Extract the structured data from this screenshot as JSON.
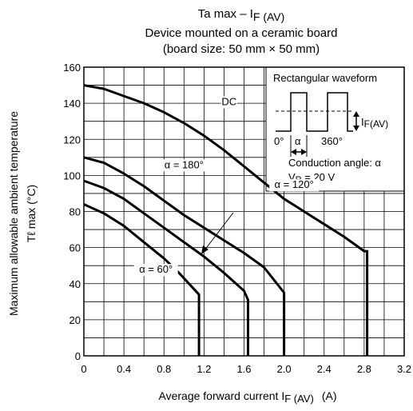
{
  "chart_data": {
    "type": "line",
    "title": {
      "line1_main": "Ta max – I",
      "line1_sub": "F (AV)",
      "line2": "Device mounted on a ceramic board",
      "line3": "(board size: 50 mm × 50 mm)"
    },
    "xlabel": {
      "main": "Average forward current   I",
      "sub": "F (AV)",
      "unit": "(A)"
    },
    "ylabel": {
      "line1": "Maximum allowable ambient temperature",
      "line2": "Tℓ max    (°C)"
    },
    "xlim": [
      0,
      3.2
    ],
    "ylim": [
      0,
      160
    ],
    "x_ticks": [
      "0",
      "0.4",
      "0.8",
      "1.2",
      "1.6",
      "2.0",
      "2.4",
      "2.8",
      "3.2"
    ],
    "y_ticks": [
      "0",
      "20",
      "40",
      "60",
      "80",
      "100",
      "120",
      "140",
      "160"
    ],
    "grid": true,
    "series": [
      {
        "name": "DC",
        "points": [
          [
            0,
            150
          ],
          [
            0.2,
            148
          ],
          [
            0.4,
            144
          ],
          [
            0.6,
            140
          ],
          [
            0.8,
            135
          ],
          [
            1.0,
            129
          ],
          [
            1.2,
            122
          ],
          [
            1.4,
            114
          ],
          [
            1.6,
            105
          ],
          [
            1.8,
            96
          ],
          [
            2.0,
            87
          ],
          [
            2.2,
            80
          ],
          [
            2.4,
            73
          ],
          [
            2.6,
            66
          ],
          [
            2.8,
            58
          ],
          [
            2.83,
            58
          ],
          [
            2.83,
            0
          ]
        ]
      },
      {
        "name": "α = 180°",
        "points": [
          [
            0,
            110
          ],
          [
            0.2,
            107
          ],
          [
            0.4,
            101
          ],
          [
            0.6,
            94
          ],
          [
            0.8,
            86
          ],
          [
            1.0,
            78
          ],
          [
            1.2,
            71
          ],
          [
            1.4,
            64
          ],
          [
            1.6,
            57
          ],
          [
            1.8,
            49
          ],
          [
            2.0,
            35
          ],
          [
            2.0,
            0
          ]
        ]
      },
      {
        "name": "α = 120°",
        "points": [
          [
            0,
            97
          ],
          [
            0.2,
            93
          ],
          [
            0.4,
            87
          ],
          [
            0.6,
            79
          ],
          [
            0.8,
            71
          ],
          [
            1.0,
            63
          ],
          [
            1.2,
            55
          ],
          [
            1.4,
            46
          ],
          [
            1.6,
            36
          ],
          [
            1.64,
            31
          ],
          [
            1.64,
            0
          ]
        ]
      },
      {
        "name": "α = 60°",
        "points": [
          [
            0,
            84
          ],
          [
            0.2,
            79
          ],
          [
            0.4,
            72
          ],
          [
            0.6,
            63
          ],
          [
            0.8,
            54
          ],
          [
            0.95,
            46
          ],
          [
            1.05,
            40
          ],
          [
            1.15,
            34
          ],
          [
            1.15,
            0
          ]
        ]
      }
    ],
    "curve_labels": [
      {
        "text": "DC",
        "x": 1.45,
        "y": 139
      },
      {
        "text": "α = 180°",
        "x": 1.0,
        "y": 104
      },
      {
        "text": "α = 120°",
        "x": 2.1,
        "y": 93
      },
      {
        "text": "α = 60°",
        "x": 0.72,
        "y": 46
      }
    ],
    "inset": {
      "title": "Rectangular waveform",
      "if_label_main": "I",
      "if_label_sub": "F(AV)",
      "t0": "0°",
      "alpha": "α",
      "t360": "360°",
      "conduction": "Conduction angle: α",
      "vr_main": "V",
      "vr_sub": "R",
      "vr_value": " = 20 V"
    }
  }
}
